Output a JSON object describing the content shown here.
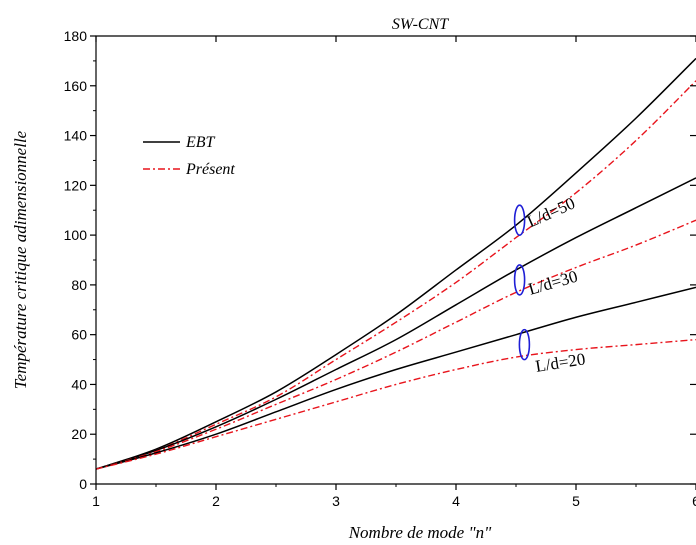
{
  "chart_data": {
    "type": "line",
    "title": "SW-CNT",
    "xlabel": "Nombre de mode \"n\"",
    "ylabel": "Température critique adimensionnelle",
    "xlim": [
      1,
      6
    ],
    "ylim": [
      0,
      180
    ],
    "x_ticks": [
      1,
      2,
      3,
      4,
      5,
      6
    ],
    "y_ticks": [
      0,
      20,
      40,
      60,
      80,
      100,
      120,
      140,
      160,
      180
    ],
    "grid": false,
    "legend": {
      "placement": "top-left",
      "entries": [
        {
          "label": "EBT",
          "color": "#000000",
          "style": "solid"
        },
        {
          "label": "Présent",
          "color": "#e8141c",
          "style": "dash-dot"
        }
      ]
    },
    "x": [
      1,
      1.5,
      2,
      2.5,
      3,
      3.5,
      4,
      4.5,
      5,
      5.5,
      6
    ],
    "series": [
      {
        "name": "EBT",
        "group": "L/d=50",
        "color": "#000000",
        "style": "solid",
        "values": [
          6,
          14,
          25,
          37,
          52,
          68,
          86,
          104,
          125,
          147,
          171
        ]
      },
      {
        "name": "Présent",
        "group": "L/d=50",
        "color": "#e8141c",
        "style": "dash-dot",
        "values": [
          6,
          13.5,
          24,
          35,
          50,
          65,
          81,
          99,
          117,
          138,
          162
        ]
      },
      {
        "name": "EBT",
        "group": "L/d=30",
        "color": "#000000",
        "style": "solid",
        "values": [
          6,
          13.5,
          23,
          34,
          46,
          58,
          72,
          86,
          99,
          111,
          123
        ]
      },
      {
        "name": "Présent",
        "group": "L/d=30",
        "color": "#e8141c",
        "style": "dash-dot",
        "values": [
          6,
          13,
          22,
          32,
          42,
          53,
          65,
          77,
          87,
          96,
          106
        ]
      },
      {
        "name": "EBT",
        "group": "L/d=20",
        "color": "#000000",
        "style": "solid",
        "values": [
          6,
          12.5,
          20,
          29,
          38,
          46,
          53,
          60,
          67,
          73,
          79
        ]
      },
      {
        "name": "Présent",
        "group": "L/d=20",
        "color": "#e8141c",
        "style": "dash-dot",
        "values": [
          6,
          12,
          19,
          26,
          33,
          40,
          46,
          51,
          54,
          56,
          58
        ]
      }
    ],
    "annotations": [
      {
        "text": "L/d=50",
        "x": 4.62,
        "y": 103,
        "angle": -24,
        "ellipse_x": 4.53,
        "ellipse_y": 106
      },
      {
        "text": "L/d=30",
        "x": 4.62,
        "y": 76,
        "angle": -16,
        "ellipse_x": 4.53,
        "ellipse_y": 82
      },
      {
        "text": "L/d=20",
        "x": 4.67,
        "y": 45,
        "angle": -9,
        "ellipse_x": 4.57,
        "ellipse_y": 56
      }
    ]
  }
}
